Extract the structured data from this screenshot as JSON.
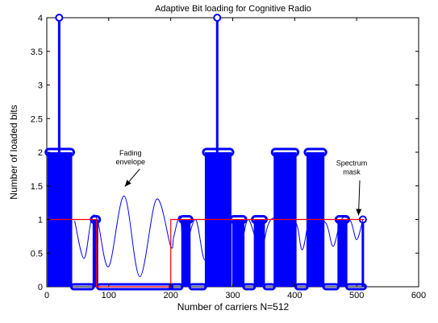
{
  "chart_data": {
    "type": "line",
    "title": "Adaptive Bit loading for Cognitive Radio",
    "xlabel": "Number of carriers N=512",
    "ylabel": "Number of loaded bits",
    "xlim": [
      0,
      600
    ],
    "ylim": [
      0,
      4
    ],
    "xticks": [
      0,
      100,
      200,
      300,
      400,
      500,
      600
    ],
    "xtick_labels": [
      "0",
      "100",
      "200",
      "300",
      "400",
      "500",
      "600"
    ],
    "yticks": [
      0,
      0.5,
      1,
      1.5,
      2,
      2.5,
      3,
      3.5,
      4
    ],
    "ytick_labels": [
      "0",
      "0.5",
      "1",
      "1.5",
      "2",
      "2.5",
      "3",
      "3.5",
      "4"
    ],
    "grid": false,
    "series": [
      {
        "role": "bit-loading-stem",
        "color": "#0000ff",
        "segments": [
          {
            "x_start": 1,
            "x_end": 41,
            "bits": 2
          },
          {
            "x_start": 42,
            "x_end": 73,
            "bits": 0
          },
          {
            "x_start": 74,
            "x_end": 83,
            "bits": 1
          },
          {
            "x_start": 84,
            "x_end": 200,
            "bits": 0
          },
          {
            "x_start": 201,
            "x_end": 216,
            "bits": 0
          },
          {
            "x_start": 217,
            "x_end": 232,
            "bits": 1
          },
          {
            "x_start": 233,
            "x_end": 254,
            "bits": 0
          },
          {
            "x_start": 255,
            "x_end": 298,
            "bits": 2
          },
          {
            "x_start": 299,
            "x_end": 319,
            "bits": 1
          },
          {
            "x_start": 320,
            "x_end": 333,
            "bits": 0
          },
          {
            "x_start": 334,
            "x_end": 352,
            "bits": 1
          },
          {
            "x_start": 353,
            "x_end": 365,
            "bits": 0
          },
          {
            "x_start": 366,
            "x_end": 403,
            "bits": 2
          },
          {
            "x_start": 404,
            "x_end": 418,
            "bits": 0
          },
          {
            "x_start": 419,
            "x_end": 448,
            "bits": 2
          },
          {
            "x_start": 449,
            "x_end": 468,
            "bits": 0
          },
          {
            "x_start": 469,
            "x_end": 485,
            "bits": 1
          },
          {
            "x_start": 486,
            "x_end": 512,
            "bits": 0
          }
        ],
        "spikes": [
          {
            "x": 20,
            "bits": 4
          },
          {
            "x": 275,
            "bits": 4
          },
          {
            "x": 510,
            "bits": 1
          }
        ]
      },
      {
        "role": "fading-envelope",
        "color": "#0000ff",
        "points": [
          [
            45,
            0.98
          ],
          [
            60,
            0.42
          ],
          [
            72,
            1.0
          ],
          [
            82,
            0.98
          ],
          [
            100,
            0.3
          ],
          [
            125,
            1.35
          ],
          [
            150,
            0.15
          ],
          [
            177,
            1.3
          ],
          [
            200,
            0.6
          ],
          [
            205,
            0.75
          ],
          [
            215,
            1.05
          ],
          [
            222,
            0.55
          ],
          [
            240,
            1.0
          ],
          [
            255,
            0.4
          ],
          [
            270,
            1.0
          ],
          [
            300,
            0.95
          ],
          [
            312,
            0.55
          ],
          [
            325,
            1.0
          ],
          [
            345,
            0.55
          ],
          [
            362,
            1.0
          ],
          [
            400,
            0.98
          ],
          [
            412,
            0.55
          ],
          [
            425,
            1.0
          ],
          [
            450,
            0.95
          ],
          [
            462,
            0.6
          ],
          [
            475,
            1.0
          ],
          [
            490,
            0.98
          ],
          [
            500,
            0.7
          ],
          [
            510,
            1.0
          ]
        ]
      },
      {
        "role": "spectrum-mask",
        "color": "#ff0000",
        "points": [
          [
            0,
            1
          ],
          [
            80,
            1
          ],
          [
            80,
            0
          ],
          [
            200,
            0
          ],
          [
            200,
            1
          ],
          [
            512,
            1
          ]
        ]
      }
    ],
    "annotations": [
      {
        "lines": [
          "Fading",
          "envelope"
        ],
        "text_x": 135,
        "text_y": 1.95,
        "arrow_from": [
          150,
          1.75
        ],
        "arrow_to": [
          126,
          1.49
        ]
      },
      {
        "lines": [
          "Spectrum",
          "mask"
        ],
        "text_x": 492,
        "text_y": 1.8,
        "arrow_from": [
          505,
          1.58
        ],
        "arrow_to": [
          503,
          1.06
        ]
      }
    ]
  }
}
